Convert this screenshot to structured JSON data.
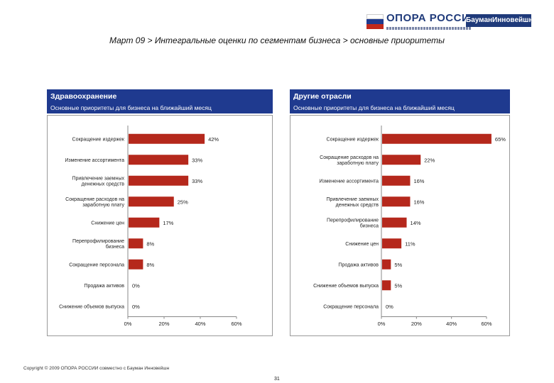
{
  "logo": {
    "name": "ОПОРА РОССИИ",
    "badge": "БауманИнновейшн",
    "flag_colors": [
      "#ffffff",
      "#1f3a8f",
      "#c0281c"
    ]
  },
  "title": "Март 09 > Интегральные оценки по сегментам бизнеса > основные приоритеты",
  "colors": {
    "panel_header": "#1f3a8f",
    "bar": "#b5281c"
  },
  "panels": [
    {
      "title": "Здравоохранение",
      "subtitle": "Основные приоритеты для бизнеса на ближайший месяц"
    },
    {
      "title": "Другие отрасли",
      "subtitle": "Основные приоритеты для бизнеса на ближайший месяц"
    }
  ],
  "chart_data": [
    {
      "type": "bar",
      "orientation": "horizontal",
      "title": "Здравоохранение",
      "categories": [
        "Сокращение издержек",
        "Изменение ассортимента",
        "Привлечение заемных денежных средств",
        "Сокращение расходов на заработную плату",
        "Снижение цен",
        "Перепрофилирование бизнеса",
        "Сокращение персонала",
        "Продажа активов",
        "Снижение объемов выпуска"
      ],
      "values": [
        42,
        33,
        33,
        25,
        17,
        8,
        8,
        0,
        0
      ],
      "value_labels": [
        "42%",
        "33%",
        "33%",
        "25%",
        "17%",
        "8%",
        "8%",
        "0%",
        "0%"
      ],
      "xlim": [
        0,
        60
      ],
      "xticks": [
        "0%",
        "20%",
        "40%",
        "60%"
      ]
    },
    {
      "type": "bar",
      "orientation": "horizontal",
      "title": "Другие отрасли",
      "categories": [
        "Сокращение издержек",
        "Сокращение расходов на заработную плату",
        "Изменение ассортимента",
        "Привлечение заемных денежных средств",
        "Перепрофилирование бизнеса",
        "Снижение цен",
        "Продажа активов",
        "Снижение объемов выпуска",
        "Сокращение персонала"
      ],
      "values": [
        65,
        22,
        16,
        16,
        14,
        11,
        5,
        5,
        0
      ],
      "value_labels": [
        "65%",
        "22%",
        "16%",
        "16%",
        "14%",
        "11%",
        "5%",
        "5%",
        "0%"
      ],
      "xlim": [
        0,
        60
      ],
      "xticks": [
        "0%",
        "20%",
        "40%",
        "60%"
      ]
    }
  ],
  "footer": {
    "copyright": "Copyright © 2009 ОПОРА РОССИИ совместно с Бауман Инновейшн",
    "page_number": "31"
  }
}
